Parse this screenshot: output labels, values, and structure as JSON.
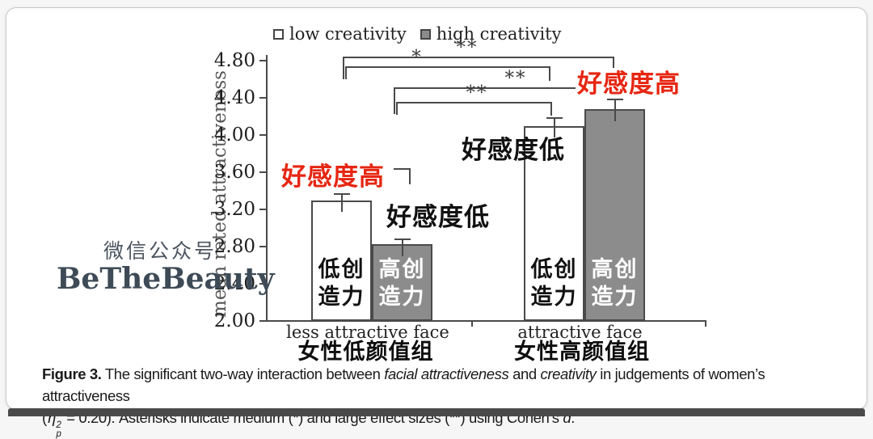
{
  "chart_data": {
    "type": "bar",
    "ylabel": "mean rated attractiveness",
    "ylim": [
      2.0,
      4.8
    ],
    "yticks": [
      "2.00",
      "2.40",
      "2.80",
      "3.20",
      "3.60",
      "4.00",
      "4.40",
      "4.80"
    ],
    "categories": [
      "less attractive face",
      "attractive face"
    ],
    "categories_zh": [
      "女性低颜值组",
      "女性高颜值组"
    ],
    "series": [
      {
        "name": "low creativity",
        "fill": "#ffffff",
        "label_zh": "低创造力",
        "label_lines": [
          "低创",
          "造力"
        ],
        "values": [
          3.3,
          4.1
        ],
        "errors": [
          0.07,
          0.09
        ]
      },
      {
        "name": "high creativity",
        "fill": "#8c8c8c",
        "label_zh": "高创造力",
        "label_lines": [
          "高创",
          "造力"
        ],
        "values": [
          2.83,
          4.28
        ],
        "errors": [
          0.06,
          0.11
        ]
      }
    ],
    "annotations": [
      {
        "text": "好感度高",
        "color": "#e62612",
        "target": "less attractive face / low creativity bar"
      },
      {
        "text": "好感度低",
        "color": "#111111",
        "target": "less attractive face / high creativity bar"
      },
      {
        "text": "好感度低",
        "color": "#111111",
        "target": "attractive face / low creativity bar"
      },
      {
        "text": "好感度高",
        "color": "#e62612",
        "target": "attractive face / high creativity bar"
      }
    ],
    "significance": [
      {
        "pair": "less-attractive low creativity vs attractive high creativity",
        "label": "**"
      },
      {
        "pair": "less-attractive low creativity vs attractive low creativity",
        "label": "*"
      },
      {
        "pair": "less-attractive high creativity vs attractive high creativity",
        "label": "**"
      },
      {
        "pair": "less-attractive high creativity vs attractive low creativity",
        "label": "**"
      }
    ],
    "legend_position": "top",
    "grid": false
  },
  "watermark": {
    "line1": "微信公众号",
    "line2": "BeTheBeauty"
  },
  "caption": {
    "figure_label": "Figure 3.",
    "seg1": " The significant two-way interaction between ",
    "italic1": "facial attractiveness",
    "seg2": " and ",
    "italic2": "creativity",
    "seg3": " in judgements of women’s attractiveness",
    "line2_open": "(",
    "eta": "η",
    "eta_sup": "2",
    "eta_sub": "p",
    "seg4": " = 0.20). Asterisks indicate medium (*) and large effect sizes (**) using Cohen’s ",
    "italic3": "d",
    "seg5": "."
  },
  "colors": {
    "red_annotation": "#e62612",
    "bar_gray": "#8c8c8c",
    "axis": "#4a4a4a"
  }
}
